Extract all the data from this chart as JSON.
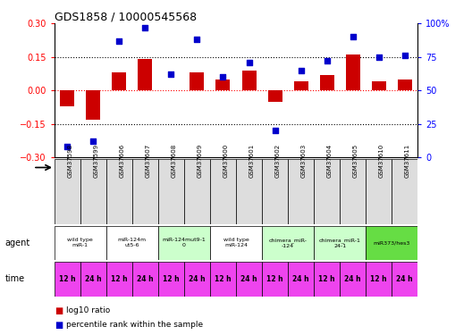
{
  "title": "GDS1858 / 10000545568",
  "samples": [
    "GSM37598",
    "GSM37599",
    "GSM37606",
    "GSM37607",
    "GSM37608",
    "GSM37609",
    "GSM37600",
    "GSM37601",
    "GSM37602",
    "GSM37603",
    "GSM37604",
    "GSM37605",
    "GSM37610",
    "GSM37611"
  ],
  "log10_ratio": [
    -0.07,
    -0.13,
    0.08,
    0.14,
    0.0,
    0.08,
    0.05,
    0.09,
    -0.05,
    0.04,
    0.07,
    0.16,
    0.04,
    0.05
  ],
  "percentile_rank": [
    8,
    12,
    87,
    97,
    62,
    88,
    60,
    71,
    20,
    65,
    72,
    90,
    75,
    76
  ],
  "agents": [
    {
      "label": "wild type\nmiR-1",
      "cols": [
        0,
        1
      ],
      "color": "#ffffff"
    },
    {
      "label": "miR-124m\nut5-6",
      "cols": [
        2,
        3
      ],
      "color": "#ffffff"
    },
    {
      "label": "miR-124mut9-1\n0",
      "cols": [
        4,
        5
      ],
      "color": "#ccffcc"
    },
    {
      "label": "wild type\nmiR-124",
      "cols": [
        6,
        7
      ],
      "color": "#ffffff"
    },
    {
      "label": "chimera_miR-\n-124",
      "cols": [
        8,
        9
      ],
      "color": "#ccffcc"
    },
    {
      "label": "chimera_miR-1\n24-1",
      "cols": [
        10,
        11
      ],
      "color": "#ccffcc"
    },
    {
      "label": "miR373/hes3",
      "cols": [
        12,
        13
      ],
      "color": "#66dd44"
    }
  ],
  "time_labels": [
    "12 h",
    "24 h",
    "12 h",
    "24 h",
    "12 h",
    "24 h",
    "12 h",
    "24 h",
    "12 h",
    "24 h",
    "12 h",
    "24 h",
    "12 h",
    "24 h"
  ],
  "time_color": "#ee44ee",
  "sample_bg": "#dddddd",
  "bar_color": "#cc0000",
  "dot_color": "#0000cc",
  "ylim_left": [
    -0.3,
    0.3
  ],
  "ylim_right": [
    0,
    100
  ],
  "yticks_left": [
    -0.3,
    -0.15,
    0.0,
    0.15,
    0.3
  ],
  "yticks_right": [
    0,
    25,
    50,
    75,
    100
  ],
  "hlines": [
    -0.15,
    0.0,
    0.15
  ]
}
